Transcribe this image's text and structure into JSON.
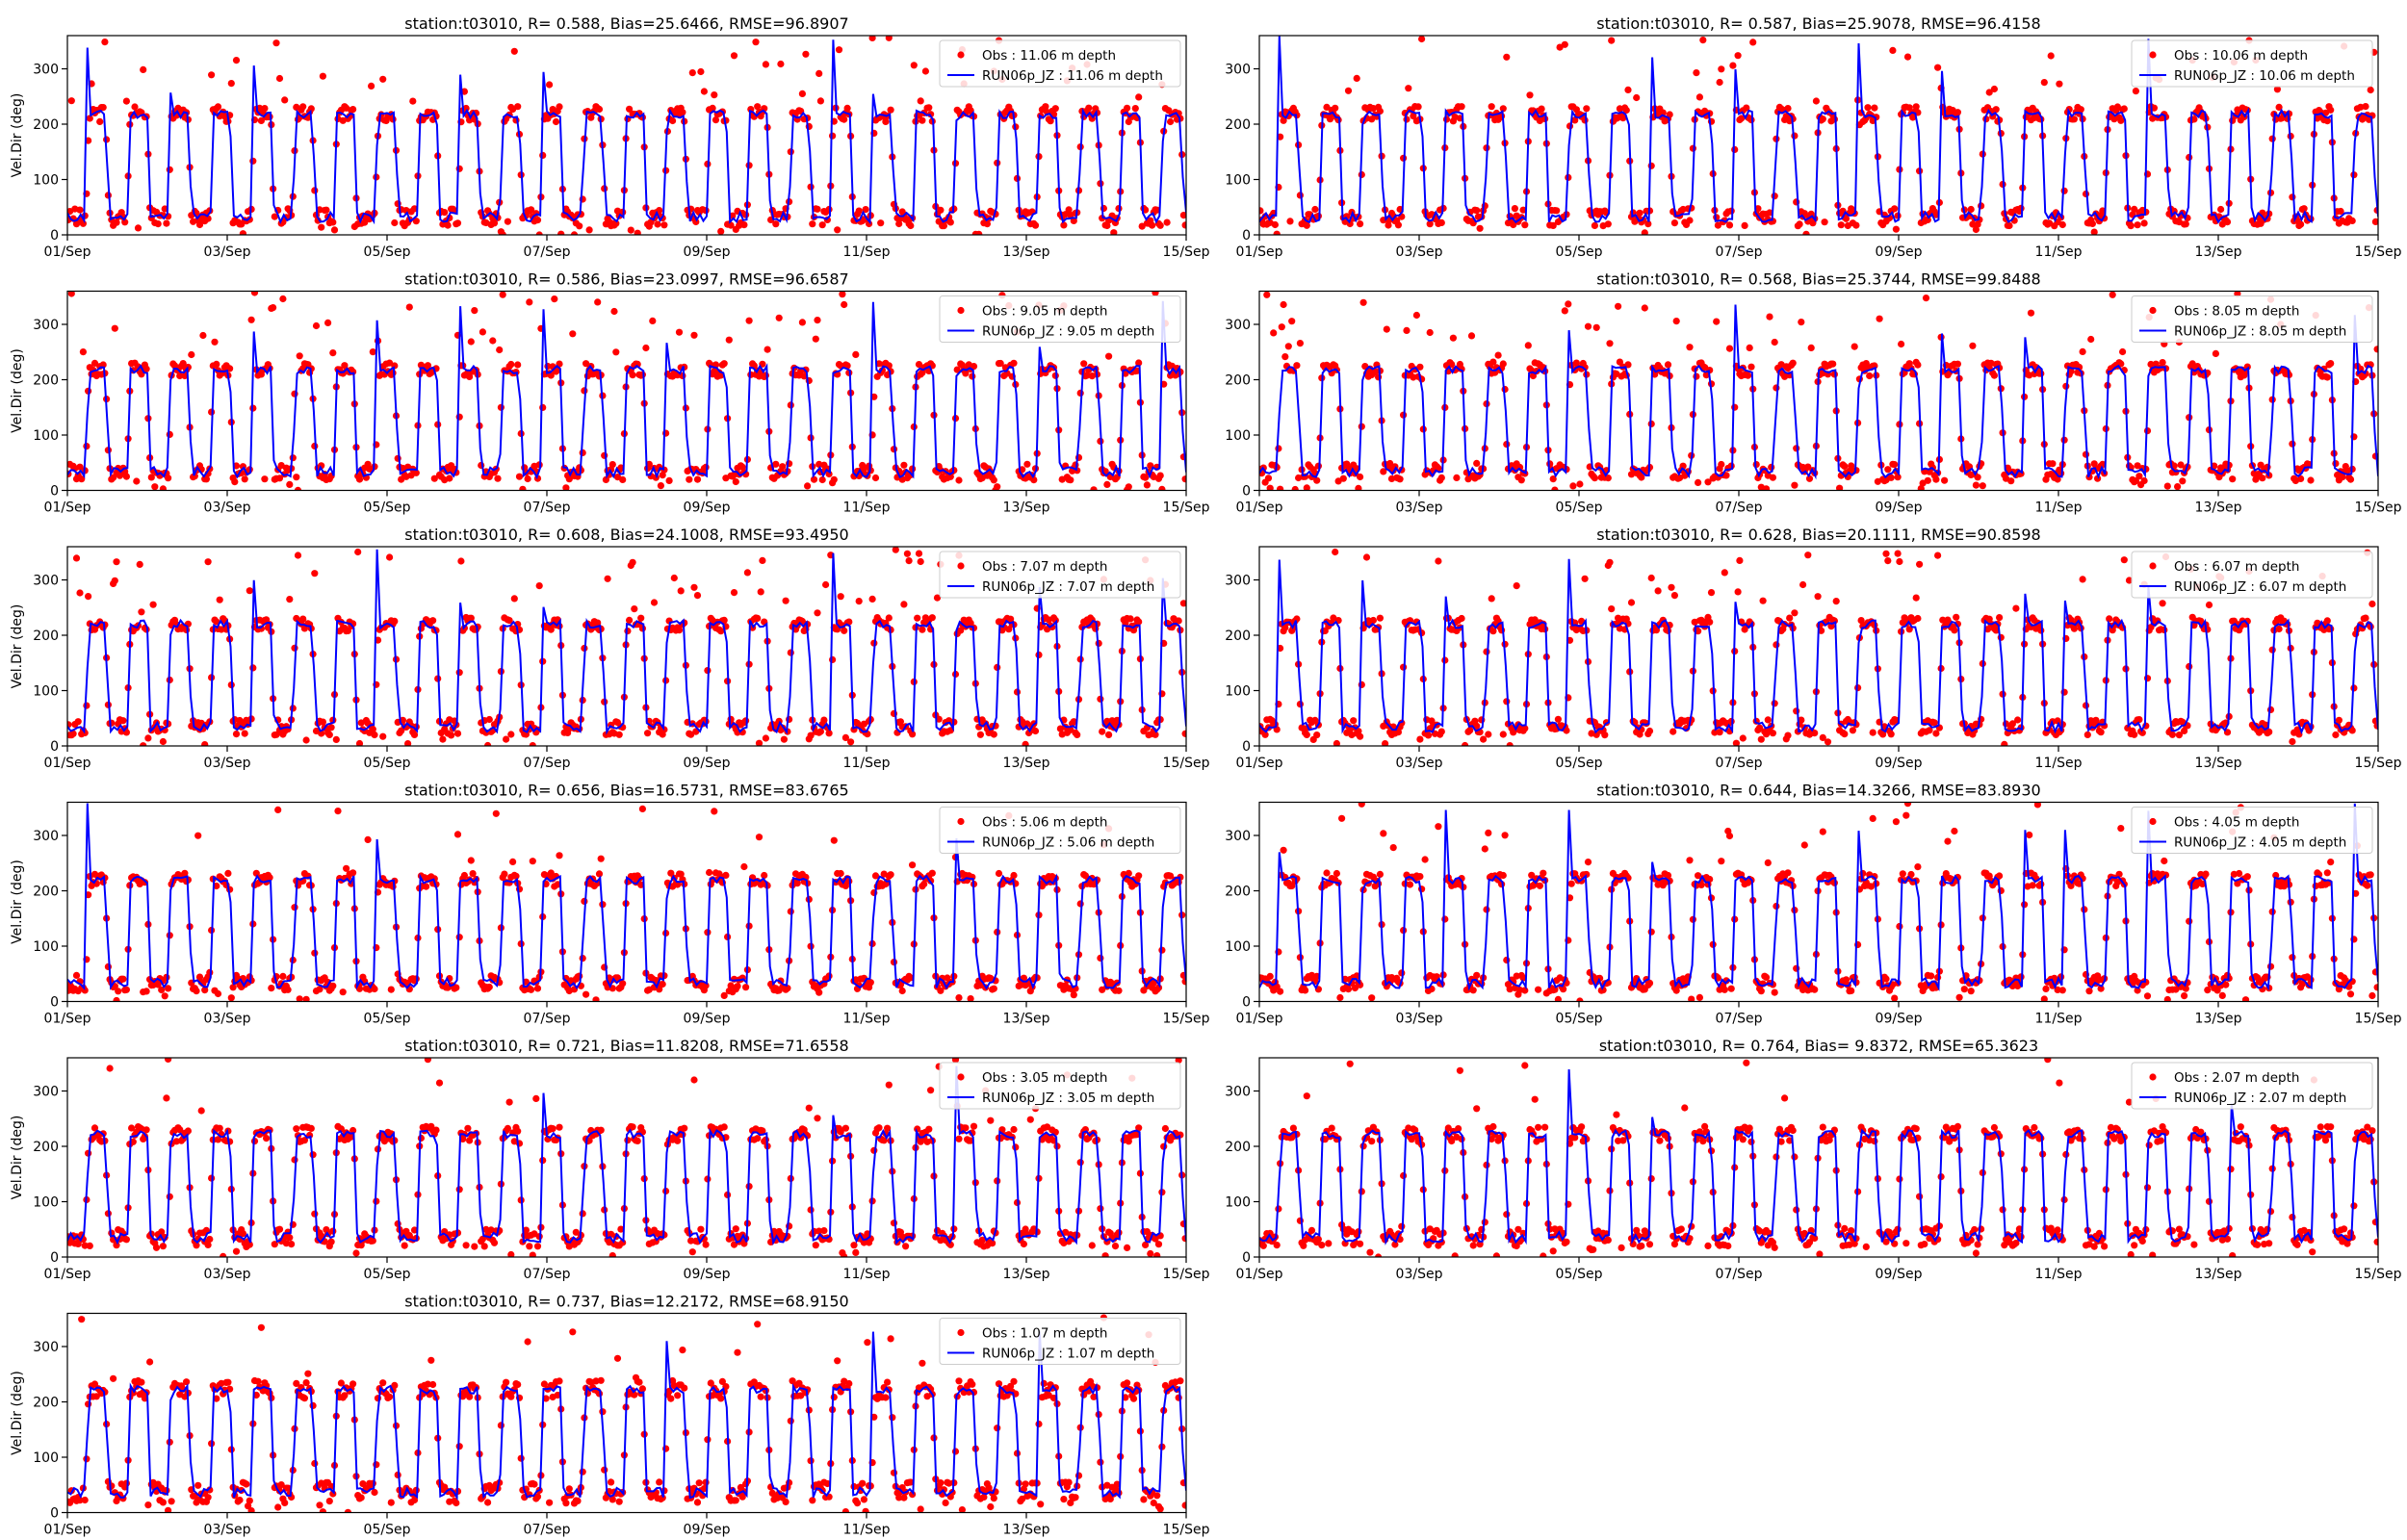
{
  "figure": {
    "series_colors": {
      "obs": "#ff0000",
      "model": "#0000ff"
    }
  },
  "chart_data": [
    {
      "type": "scatter+line",
      "title": "station:t03010, R= 0.588, Bias=25.6466, RMSE=96.8907",
      "ylabel": "Vel.Dir (deg)",
      "xlabel": "",
      "xticks": [
        "01/Sep",
        "03/Sep",
        "05/Sep",
        "07/Sep",
        "09/Sep",
        "11/Sep",
        "13/Sep",
        "15/Sep"
      ],
      "yticks": [
        0,
        100,
        200,
        300
      ],
      "xlim": [
        0,
        14
      ],
      "ylim": [
        0,
        360
      ],
      "legend_position": "top-right",
      "series": [
        {
          "name": "Obs : 11.06 m depth",
          "kind": "scatter",
          "color": "#ff0000"
        },
        {
          "name": "RUN06p_JZ : 11.06 m depth",
          "kind": "line",
          "color": "#0000ff"
        }
      ],
      "pattern": {
        "high_mean": 218,
        "low_mean": 32,
        "spike_prob": 0.34,
        "obs_noise": 10,
        "seed": 11
      }
    },
    {
      "type": "scatter+line",
      "title": "station:t03010, R= 0.587, Bias=25.9078, RMSE=96.4158",
      "ylabel": "",
      "xlabel": "",
      "xticks": [
        "01/Sep",
        "03/Sep",
        "05/Sep",
        "07/Sep",
        "09/Sep",
        "11/Sep",
        "13/Sep",
        "15/Sep"
      ],
      "yticks": [
        0,
        100,
        200,
        300
      ],
      "xlim": [
        0,
        14
      ],
      "ylim": [
        0,
        360
      ],
      "legend_position": "top-right",
      "series": [
        {
          "name": "Obs : 10.06 m depth",
          "kind": "scatter",
          "color": "#ff0000"
        },
        {
          "name": "RUN06p_JZ : 10.06 m depth",
          "kind": "line",
          "color": "#0000ff"
        }
      ],
      "pattern": {
        "high_mean": 218,
        "low_mean": 32,
        "spike_prob": 0.33,
        "obs_noise": 10,
        "seed": 10
      }
    },
    {
      "type": "scatter+line",
      "title": "station:t03010, R= 0.586, Bias=23.0997, RMSE=96.6587",
      "ylabel": "Vel.Dir (deg)",
      "xlabel": "",
      "xticks": [
        "01/Sep",
        "03/Sep",
        "05/Sep",
        "07/Sep",
        "09/Sep",
        "11/Sep",
        "13/Sep",
        "15/Sep"
      ],
      "yticks": [
        0,
        100,
        200,
        300
      ],
      "xlim": [
        0,
        14
      ],
      "ylim": [
        0,
        360
      ],
      "legend_position": "top-right",
      "series": [
        {
          "name": "Obs : 9.05 m depth",
          "kind": "scatter",
          "color": "#ff0000"
        },
        {
          "name": "RUN06p_JZ : 9.05 m depth",
          "kind": "line",
          "color": "#0000ff"
        }
      ],
      "pattern": {
        "high_mean": 218,
        "low_mean": 33,
        "spike_prob": 0.33,
        "obs_noise": 9,
        "seed": 9
      }
    },
    {
      "type": "scatter+line",
      "title": "station:t03010, R= 0.568, Bias=25.3744, RMSE=99.8488",
      "ylabel": "",
      "xlabel": "",
      "xticks": [
        "01/Sep",
        "03/Sep",
        "05/Sep",
        "07/Sep",
        "09/Sep",
        "11/Sep",
        "13/Sep",
        "15/Sep"
      ],
      "yticks": [
        0,
        100,
        200,
        300
      ],
      "xlim": [
        0,
        14
      ],
      "ylim": [
        0,
        360
      ],
      "legend_position": "top-right",
      "series": [
        {
          "name": "Obs : 8.05 m depth",
          "kind": "scatter",
          "color": "#ff0000"
        },
        {
          "name": "RUN06p_JZ : 8.05 m depth",
          "kind": "line",
          "color": "#0000ff"
        }
      ],
      "pattern": {
        "high_mean": 218,
        "low_mean": 33,
        "spike_prob": 0.34,
        "obs_noise": 10,
        "seed": 8
      }
    },
    {
      "type": "scatter+line",
      "title": "station:t03010, R= 0.608, Bias=24.1008, RMSE=93.4950",
      "ylabel": "Vel.Dir (deg)",
      "xlabel": "",
      "xticks": [
        "01/Sep",
        "03/Sep",
        "05/Sep",
        "07/Sep",
        "09/Sep",
        "11/Sep",
        "13/Sep",
        "15/Sep"
      ],
      "yticks": [
        0,
        100,
        200,
        300
      ],
      "xlim": [
        0,
        14
      ],
      "ylim": [
        0,
        360
      ],
      "legend_position": "top-right",
      "series": [
        {
          "name": "Obs : 7.07 m depth",
          "kind": "scatter",
          "color": "#ff0000"
        },
        {
          "name": "RUN06p_JZ : 7.07 m depth",
          "kind": "line",
          "color": "#0000ff"
        }
      ],
      "pattern": {
        "high_mean": 220,
        "low_mean": 34,
        "spike_prob": 0.28,
        "obs_noise": 9,
        "seed": 7
      }
    },
    {
      "type": "scatter+line",
      "title": "station:t03010, R= 0.628, Bias=20.1111, RMSE=90.8598",
      "ylabel": "",
      "xlabel": "",
      "xticks": [
        "01/Sep",
        "03/Sep",
        "05/Sep",
        "07/Sep",
        "09/Sep",
        "11/Sep",
        "13/Sep",
        "15/Sep"
      ],
      "yticks": [
        0,
        100,
        200,
        300
      ],
      "xlim": [
        0,
        14
      ],
      "ylim": [
        0,
        360
      ],
      "legend_position": "top-right",
      "series": [
        {
          "name": "Obs : 6.07 m depth",
          "kind": "scatter",
          "color": "#ff0000"
        },
        {
          "name": "RUN06p_JZ : 6.07 m depth",
          "kind": "line",
          "color": "#0000ff"
        }
      ],
      "pattern": {
        "high_mean": 220,
        "low_mean": 34,
        "spike_prob": 0.27,
        "obs_noise": 9,
        "seed": 6
      }
    },
    {
      "type": "scatter+line",
      "title": "station:t03010, R= 0.656, Bias=16.5731, RMSE=83.6765",
      "ylabel": "Vel.Dir (deg)",
      "xlabel": "",
      "xticks": [
        "01/Sep",
        "03/Sep",
        "05/Sep",
        "07/Sep",
        "09/Sep",
        "11/Sep",
        "13/Sep",
        "15/Sep"
      ],
      "yticks": [
        0,
        100,
        200,
        300
      ],
      "xlim": [
        0,
        14
      ],
      "ylim": [
        0,
        360
      ],
      "legend_position": "top-right",
      "series": [
        {
          "name": "Obs : 5.06 m depth",
          "kind": "scatter",
          "color": "#ff0000"
        },
        {
          "name": "RUN06p_JZ : 5.06 m depth",
          "kind": "line",
          "color": "#0000ff"
        }
      ],
      "pattern": {
        "high_mean": 220,
        "low_mean": 33,
        "spike_prob": 0.22,
        "obs_noise": 9,
        "seed": 5
      }
    },
    {
      "type": "scatter+line",
      "title": "station:t03010, R= 0.644, Bias=14.3266, RMSE=83.8930",
      "ylabel": "",
      "xlabel": "",
      "xticks": [
        "01/Sep",
        "03/Sep",
        "05/Sep",
        "07/Sep",
        "09/Sep",
        "11/Sep",
        "13/Sep",
        "15/Sep"
      ],
      "yticks": [
        0,
        100,
        200,
        300
      ],
      "xlim": [
        0,
        14
      ],
      "ylim": [
        0,
        360
      ],
      "legend_position": "top-right",
      "series": [
        {
          "name": "Obs : 4.05 m depth",
          "kind": "scatter",
          "color": "#ff0000"
        },
        {
          "name": "RUN06p_JZ : 4.05 m depth",
          "kind": "line",
          "color": "#0000ff"
        }
      ],
      "pattern": {
        "high_mean": 220,
        "low_mean": 33,
        "spike_prob": 0.2,
        "obs_noise": 9,
        "seed": 4
      }
    },
    {
      "type": "scatter+line",
      "title": "station:t03010, R= 0.721, Bias=11.8208, RMSE=71.6558",
      "ylabel": "Vel.Dir (deg)",
      "xlabel": "",
      "xticks": [
        "01/Sep",
        "03/Sep",
        "05/Sep",
        "07/Sep",
        "09/Sep",
        "11/Sep",
        "13/Sep",
        "15/Sep"
      ],
      "yticks": [
        0,
        100,
        200,
        300
      ],
      "xlim": [
        0,
        14
      ],
      "ylim": [
        0,
        360
      ],
      "legend_position": "top-right",
      "series": [
        {
          "name": "Obs : 3.05 m depth",
          "kind": "scatter",
          "color": "#ff0000"
        },
        {
          "name": "RUN06p_JZ : 3.05 m depth",
          "kind": "line",
          "color": "#0000ff"
        }
      ],
      "pattern": {
        "high_mean": 222,
        "low_mean": 35,
        "spike_prob": 0.18,
        "obs_noise": 10,
        "seed": 3
      }
    },
    {
      "type": "scatter+line",
      "title": "station:t03010, R= 0.764, Bias= 9.8372, RMSE=65.3623",
      "ylabel": "",
      "xlabel": "",
      "xticks": [
        "01/Sep",
        "03/Sep",
        "05/Sep",
        "07/Sep",
        "09/Sep",
        "11/Sep",
        "13/Sep",
        "15/Sep"
      ],
      "yticks": [
        0,
        100,
        200,
        300
      ],
      "xlim": [
        0,
        14
      ],
      "ylim": [
        0,
        360
      ],
      "legend_position": "top-right",
      "series": [
        {
          "name": "Obs : 2.07 m depth",
          "kind": "scatter",
          "color": "#ff0000"
        },
        {
          "name": "RUN06p_JZ : 2.07 m depth",
          "kind": "line",
          "color": "#0000ff"
        }
      ],
      "pattern": {
        "high_mean": 222,
        "low_mean": 36,
        "spike_prob": 0.16,
        "obs_noise": 10,
        "seed": 2
      }
    },
    {
      "type": "scatter+line",
      "title": "station:t03010, R= 0.737, Bias=12.2172, RMSE=68.9150",
      "ylabel": "Vel.Dir (deg)",
      "xlabel": "",
      "xticks": [
        "01/Sep",
        "03/Sep",
        "05/Sep",
        "07/Sep",
        "09/Sep",
        "11/Sep",
        "13/Sep",
        "15/Sep"
      ],
      "yticks": [
        0,
        100,
        200,
        300
      ],
      "xlim": [
        0,
        14
      ],
      "ylim": [
        0,
        360
      ],
      "legend_position": "top-right",
      "series": [
        {
          "name": "Obs : 1.07 m depth",
          "kind": "scatter",
          "color": "#ff0000"
        },
        {
          "name": "RUN06p_JZ : 1.07 m depth",
          "kind": "line",
          "color": "#0000ff"
        }
      ],
      "pattern": {
        "high_mean": 222,
        "low_mean": 36,
        "spike_prob": 0.2,
        "obs_noise": 12,
        "seed": 1
      }
    }
  ]
}
